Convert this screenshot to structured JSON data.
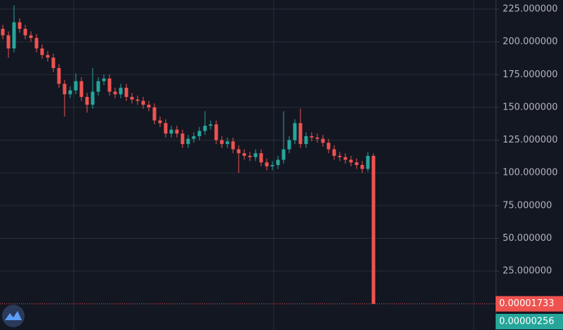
{
  "chart_data": {
    "type": "candlestick",
    "open": [
      210,
      205,
      195,
      215,
      210,
      205,
      203,
      195,
      190,
      188,
      180,
      168,
      160,
      163,
      170,
      158,
      152,
      162,
      170,
      172,
      162,
      160,
      165,
      158,
      156,
      155,
      152,
      150,
      140,
      138,
      130,
      133,
      130,
      122,
      126,
      128,
      132,
      136,
      137,
      125,
      122,
      124,
      118,
      115,
      113,
      112,
      115,
      108,
      105,
      106,
      110,
      118,
      125,
      138,
      122,
      128,
      127,
      126,
      123,
      118,
      113,
      112,
      110,
      108,
      106,
      103,
      113
    ],
    "high": [
      213,
      208,
      228,
      218,
      213,
      208,
      206,
      198,
      193,
      191,
      183,
      171,
      166,
      176,
      173,
      161,
      180,
      173,
      175,
      175,
      165,
      168,
      168,
      161,
      159,
      158,
      155,
      153,
      143,
      141,
      136,
      136,
      133,
      129,
      131,
      135,
      147,
      140,
      140,
      128,
      127,
      127,
      121,
      118,
      116,
      118,
      118,
      111,
      109,
      113,
      147,
      128,
      141,
      149,
      131,
      131,
      130,
      129,
      126,
      121,
      116,
      115,
      113,
      111,
      109,
      116,
      115
    ],
    "low": [
      202,
      188,
      192,
      207,
      202,
      200,
      192,
      187,
      185,
      177,
      165,
      143,
      157,
      160,
      155,
      146,
      149,
      159,
      167,
      159,
      157,
      157,
      155,
      153,
      152,
      149,
      147,
      137,
      135,
      127,
      127,
      127,
      119,
      119,
      123,
      125,
      129,
      133,
      122,
      119,
      119,
      115,
      100,
      110,
      109,
      109,
      105,
      102,
      102,
      103,
      107,
      115,
      122,
      119,
      119,
      124,
      123,
      120,
      115,
      110,
      109,
      107,
      105,
      103,
      100,
      101,
      1.733e-05
    ],
    "close": [
      205,
      195,
      215,
      210,
      205,
      203,
      195,
      190,
      188,
      180,
      168,
      160,
      163,
      170,
      158,
      152,
      162,
      170,
      172,
      162,
      160,
      165,
      158,
      156,
      155,
      152,
      150,
      140,
      138,
      130,
      133,
      130,
      122,
      126,
      128,
      132,
      136,
      137,
      125,
      122,
      124,
      118,
      115,
      113,
      112,
      115,
      108,
      105,
      106,
      110,
      118,
      125,
      138,
      122,
      128,
      127,
      126,
      123,
      118,
      113,
      112,
      110,
      108,
      106,
      103,
      113,
      1.733e-05
    ],
    "up_color": "#26a69a",
    "down_color": "#ef5350",
    "ylim": [
      -20,
      232
    ],
    "yticks": [
      {
        "value": 25,
        "label": "25.000000"
      },
      {
        "value": 50,
        "label": "50.000000"
      },
      {
        "value": 75,
        "label": "75.000000"
      },
      {
        "value": 100,
        "label": "100.000000"
      },
      {
        "value": 125,
        "label": "125.000000"
      },
      {
        "value": 150,
        "label": "150.000000"
      },
      {
        "value": 175,
        "label": "175.000000"
      },
      {
        "value": 200,
        "label": "200.000000"
      },
      {
        "value": 225,
        "label": "225.000000"
      }
    ],
    "grid": true,
    "last_price": {
      "value": 1.733e-05,
      "label": "0.00001733"
    },
    "volume_last": {
      "value": 2.56e-06,
      "label": "0.00000256"
    }
  }
}
